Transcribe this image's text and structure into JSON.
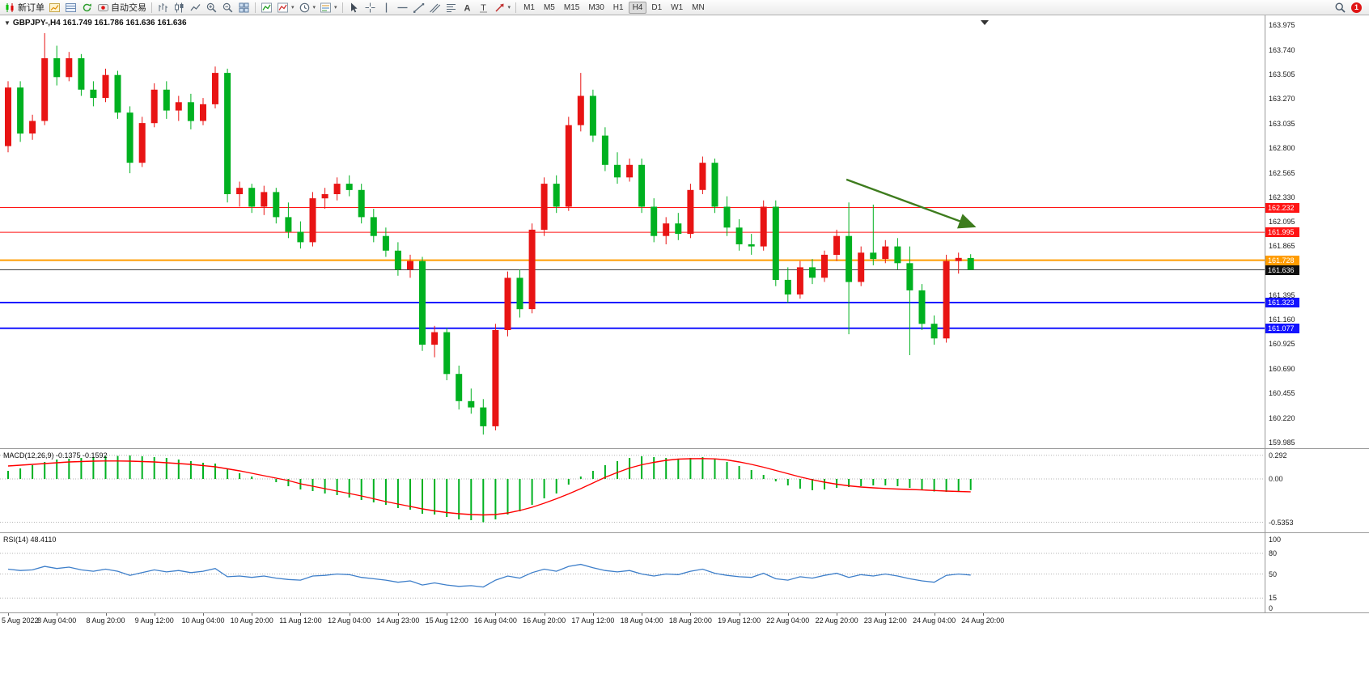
{
  "icons": {
    "caret": "▾",
    "chart_menu": "▼"
  },
  "window": {
    "toolbar": {
      "new_order": "新订单",
      "autotrading": "自动交易",
      "timeframes": [
        "M1",
        "M5",
        "M15",
        "M30",
        "H1",
        "H4",
        "D1",
        "W1",
        "MN"
      ],
      "active_timeframe": "H4",
      "notification_badge": "1"
    }
  },
  "chart": {
    "title": "GBPJPY-,H4 161.749 161.786 161.636 161.636",
    "macd_label": "MACD(12,26,9) -0.1375 -0.1592",
    "rsi_label": "RSI(14) 48.4110"
  },
  "chart_data": {
    "type": "candlestick",
    "symbol": "GBPJPY-",
    "timeframe": "H4",
    "ohlc_display": {
      "open": "161.749",
      "high": "161.786",
      "low": "161.636",
      "close": "161.636"
    },
    "bull_color": "#e81414",
    "bear_color": "#00b120",
    "price_axis": {
      "min": 159.93,
      "max": 164.07,
      "ticks": [
        163.975,
        163.74,
        163.505,
        163.27,
        163.035,
        162.8,
        162.565,
        162.33,
        162.095,
        161.865,
        161.63,
        161.395,
        161.16,
        160.925,
        160.69,
        160.455,
        160.22,
        159.985
      ]
    },
    "time_axis": [
      "5 Aug 2022",
      "8 Aug 04:00",
      "8 Aug 20:00",
      "9 Aug 12:00",
      "10 Aug 04:00",
      "10 Aug 20:00",
      "11 Aug 12:00",
      "12 Aug 04:00",
      "14 Aug 23:00",
      "15 Aug 12:00",
      "16 Aug 04:00",
      "16 Aug 20:00",
      "17 Aug 12:00",
      "18 Aug 04:00",
      "18 Aug 20:00",
      "19 Aug 12:00",
      "22 Aug 04:00",
      "22 Aug 20:00",
      "23 Aug 12:00",
      "24 Aug 04:00",
      "24 Aug 20:00"
    ],
    "hlines": [
      {
        "name": "resistance-line-1",
        "price": 162.232,
        "color": "#ff1414",
        "width": 1
      },
      {
        "name": "resistance-line-2",
        "price": 161.995,
        "color": "#ff1414",
        "width": 1
      },
      {
        "name": "pivot-line",
        "price": 161.728,
        "color": "#ff9c00",
        "width": 2
      },
      {
        "name": "current-price-line",
        "price": 161.636,
        "color": "#404040",
        "width": 1,
        "badge": "#101010"
      },
      {
        "name": "support-line-1",
        "price": 161.323,
        "color": "#1414ff",
        "width": 2
      },
      {
        "name": "support-line-2",
        "price": 161.077,
        "color": "#1414ff",
        "width": 2
      }
    ],
    "arrow": {
      "from": {
        "index": 68.8,
        "price": 162.5
      },
      "to": {
        "index": 79.3,
        "price": 162.05
      },
      "color": "#3e7c1e"
    },
    "candles": [
      [
        162.82,
        163.44,
        162.76,
        163.38
      ],
      [
        163.38,
        163.44,
        162.86,
        162.94
      ],
      [
        162.94,
        163.12,
        162.88,
        163.06
      ],
      [
        163.06,
        163.9,
        163.02,
        163.66
      ],
      [
        163.66,
        163.78,
        163.4,
        163.48
      ],
      [
        163.48,
        163.72,
        163.44,
        163.66
      ],
      [
        163.66,
        163.7,
        163.3,
        163.36
      ],
      [
        163.36,
        163.44,
        163.2,
        163.28
      ],
      [
        163.28,
        163.56,
        163.24,
        163.5
      ],
      [
        163.5,
        163.54,
        163.08,
        163.14
      ],
      [
        163.14,
        163.2,
        162.56,
        162.66
      ],
      [
        162.66,
        163.1,
        162.62,
        163.04
      ],
      [
        163.04,
        163.42,
        163.0,
        163.36
      ],
      [
        163.36,
        163.44,
        163.08,
        163.16
      ],
      [
        163.16,
        163.3,
        163.06,
        163.24
      ],
      [
        163.24,
        163.32,
        162.98,
        163.06
      ],
      [
        163.06,
        163.28,
        163.02,
        163.22
      ],
      [
        163.22,
        163.58,
        163.18,
        163.52
      ],
      [
        163.52,
        163.56,
        162.28,
        162.36
      ],
      [
        162.36,
        162.48,
        162.24,
        162.42
      ],
      [
        162.42,
        162.46,
        162.18,
        162.24
      ],
      [
        162.24,
        162.44,
        162.16,
        162.38
      ],
      [
        162.38,
        162.42,
        162.08,
        162.14
      ],
      [
        162.14,
        162.28,
        161.94,
        162.0
      ],
      [
        162.0,
        162.1,
        161.84,
        161.9
      ],
      [
        161.9,
        162.38,
        161.86,
        162.32
      ],
      [
        162.32,
        162.42,
        162.22,
        162.36
      ],
      [
        162.36,
        162.52,
        162.3,
        162.46
      ],
      [
        162.46,
        162.54,
        162.34,
        162.4
      ],
      [
        162.4,
        162.46,
        162.08,
        162.14
      ],
      [
        162.14,
        162.22,
        161.9,
        161.96
      ],
      [
        161.96,
        162.04,
        161.76,
        161.82
      ],
      [
        161.82,
        161.9,
        161.58,
        161.64
      ],
      [
        161.64,
        161.78,
        161.56,
        161.72
      ],
      [
        161.72,
        161.76,
        160.86,
        160.92
      ],
      [
        160.92,
        161.1,
        160.8,
        161.04
      ],
      [
        161.04,
        161.08,
        160.58,
        160.64
      ],
      [
        160.64,
        160.72,
        160.3,
        160.38
      ],
      [
        160.38,
        160.5,
        160.26,
        160.32
      ],
      [
        160.32,
        160.4,
        160.06,
        160.14
      ],
      [
        160.14,
        161.12,
        160.1,
        161.06
      ],
      [
        161.06,
        161.62,
        161.0,
        161.56
      ],
      [
        161.56,
        161.64,
        161.18,
        161.26
      ],
      [
        161.26,
        162.08,
        161.22,
        162.02
      ],
      [
        162.02,
        162.52,
        161.96,
        162.46
      ],
      [
        162.46,
        162.54,
        162.18,
        162.24
      ],
      [
        162.24,
        163.1,
        162.2,
        163.02
      ],
      [
        163.02,
        163.52,
        162.96,
        163.3
      ],
      [
        163.3,
        163.36,
        162.86,
        162.92
      ],
      [
        162.92,
        163.0,
        162.58,
        162.64
      ],
      [
        162.64,
        162.76,
        162.46,
        162.52
      ],
      [
        162.52,
        162.7,
        162.48,
        162.64
      ],
      [
        162.64,
        162.7,
        162.18,
        162.24
      ],
      [
        162.24,
        162.32,
        161.9,
        161.96
      ],
      [
        161.96,
        162.14,
        161.88,
        162.08
      ],
      [
        162.08,
        162.18,
        161.92,
        161.98
      ],
      [
        161.98,
        162.46,
        161.94,
        162.4
      ],
      [
        162.4,
        162.72,
        162.36,
        162.66
      ],
      [
        162.66,
        162.7,
        162.18,
        162.24
      ],
      [
        162.24,
        162.34,
        161.96,
        162.04
      ],
      [
        162.04,
        162.12,
        161.82,
        161.88
      ],
      [
        161.88,
        161.98,
        161.78,
        161.86
      ],
      [
        161.86,
        162.3,
        161.82,
        162.24
      ],
      [
        162.24,
        162.3,
        161.48,
        161.54
      ],
      [
        161.54,
        161.66,
        161.32,
        161.4
      ],
      [
        161.4,
        161.72,
        161.36,
        161.66
      ],
      [
        161.66,
        161.74,
        161.5,
        161.56
      ],
      [
        161.56,
        161.82,
        161.52,
        161.78
      ],
      [
        161.78,
        162.02,
        161.72,
        161.96
      ],
      [
        161.96,
        162.28,
        161.02,
        161.52
      ],
      [
        161.52,
        161.86,
        161.48,
        161.8
      ],
      [
        161.8,
        162.26,
        161.68,
        161.74
      ],
      [
        161.74,
        161.92,
        161.7,
        161.86
      ],
      [
        161.86,
        161.94,
        161.64,
        161.7
      ],
      [
        161.7,
        161.86,
        160.82,
        161.44
      ],
      [
        161.44,
        161.5,
        161.06,
        161.12
      ],
      [
        161.12,
        161.2,
        160.92,
        160.98
      ],
      [
        160.98,
        161.78,
        160.94,
        161.72
      ],
      [
        161.72,
        161.8,
        161.6,
        161.75
      ],
      [
        161.749,
        161.786,
        161.636,
        161.636
      ]
    ],
    "macd": {
      "label": "MACD(12,26,9)",
      "value_main": "-0.1375",
      "value_signal": "-0.1592",
      "hist_color": "#00b120",
      "signal_color": "#ff0000",
      "min": -0.66,
      "max": 0.37,
      "scale": [
        {
          "label": "0.292",
          "value": 0.292
        },
        {
          "label": "0.00",
          "value": 0
        },
        {
          "label": "-0.5353",
          "value": -0.5353
        }
      ],
      "histogram": [
        0.1,
        0.13,
        0.17,
        0.21,
        0.24,
        0.25,
        0.26,
        0.27,
        0.28,
        0.285,
        0.29,
        0.28,
        0.27,
        0.26,
        0.24,
        0.22,
        0.2,
        0.19,
        0.12,
        0.07,
        0.03,
        0.0,
        -0.04,
        -0.09,
        -0.13,
        -0.15,
        -0.18,
        -0.2,
        -0.23,
        -0.26,
        -0.29,
        -0.32,
        -0.36,
        -0.38,
        -0.43,
        -0.44,
        -0.47,
        -0.5,
        -0.51,
        -0.5353,
        -0.5,
        -0.44,
        -0.4,
        -0.32,
        -0.24,
        -0.18,
        -0.07,
        0.03,
        0.1,
        0.17,
        0.22,
        0.26,
        0.28,
        0.27,
        0.26,
        0.25,
        0.26,
        0.27,
        0.25,
        0.21,
        0.16,
        0.11,
        0.05,
        -0.03,
        -0.08,
        -0.12,
        -0.14,
        -0.13,
        -0.11,
        -0.1,
        -0.09,
        -0.08,
        -0.08,
        -0.09,
        -0.11,
        -0.13,
        -0.155,
        -0.16,
        -0.15,
        -0.1375
      ],
      "signal": [
        0.16,
        0.17,
        0.18,
        0.19,
        0.2,
        0.21,
        0.215,
        0.22,
        0.222,
        0.222,
        0.22,
        0.215,
        0.21,
        0.2,
        0.19,
        0.18,
        0.165,
        0.15,
        0.125,
        0.1,
        0.07,
        0.04,
        0.01,
        -0.02,
        -0.06,
        -0.09,
        -0.12,
        -0.15,
        -0.18,
        -0.21,
        -0.245,
        -0.28,
        -0.31,
        -0.34,
        -0.37,
        -0.395,
        -0.415,
        -0.43,
        -0.44,
        -0.445,
        -0.44,
        -0.42,
        -0.39,
        -0.35,
        -0.3,
        -0.245,
        -0.185,
        -0.12,
        -0.05,
        0.02,
        0.08,
        0.135,
        0.175,
        0.205,
        0.23,
        0.245,
        0.25,
        0.252,
        0.248,
        0.235,
        0.21,
        0.18,
        0.145,
        0.105,
        0.065,
        0.025,
        -0.01,
        -0.04,
        -0.065,
        -0.085,
        -0.1,
        -0.11,
        -0.118,
        -0.125,
        -0.13,
        -0.136,
        -0.143,
        -0.15,
        -0.155,
        -0.1592
      ]
    },
    "rsi": {
      "label": "RSI(14)",
      "value": "48.4110",
      "color": "#3e7fca",
      "min": -5.9,
      "max": 109.4,
      "levels": [
        80,
        50,
        15
      ],
      "scale": [
        {
          "label": "100",
          "value": 100
        },
        {
          "label": "80",
          "value": 80
        },
        {
          "label": "50",
          "value": 50
        },
        {
          "label": "15",
          "value": 15
        },
        {
          "label": "0",
          "value": 0
        }
      ],
      "values": [
        57,
        55,
        56,
        61,
        58,
        60,
        56,
        54,
        57,
        54,
        48,
        52,
        56,
        53,
        55,
        52,
        54,
        58,
        46,
        47,
        45,
        47,
        44,
        42,
        41,
        47,
        48,
        50,
        49,
        45,
        43,
        41,
        38,
        40,
        34,
        37,
        34,
        32,
        33,
        31,
        41,
        47,
        44,
        52,
        57,
        54,
        61,
        64,
        59,
        55,
        53,
        55,
        50,
        47,
        50,
        49,
        54,
        57,
        51,
        48,
        46,
        45,
        51,
        43,
        41,
        46,
        44,
        48,
        51,
        45,
        49,
        47,
        50,
        47,
        43,
        40,
        38,
        48,
        50,
        48.41
      ]
    }
  }
}
